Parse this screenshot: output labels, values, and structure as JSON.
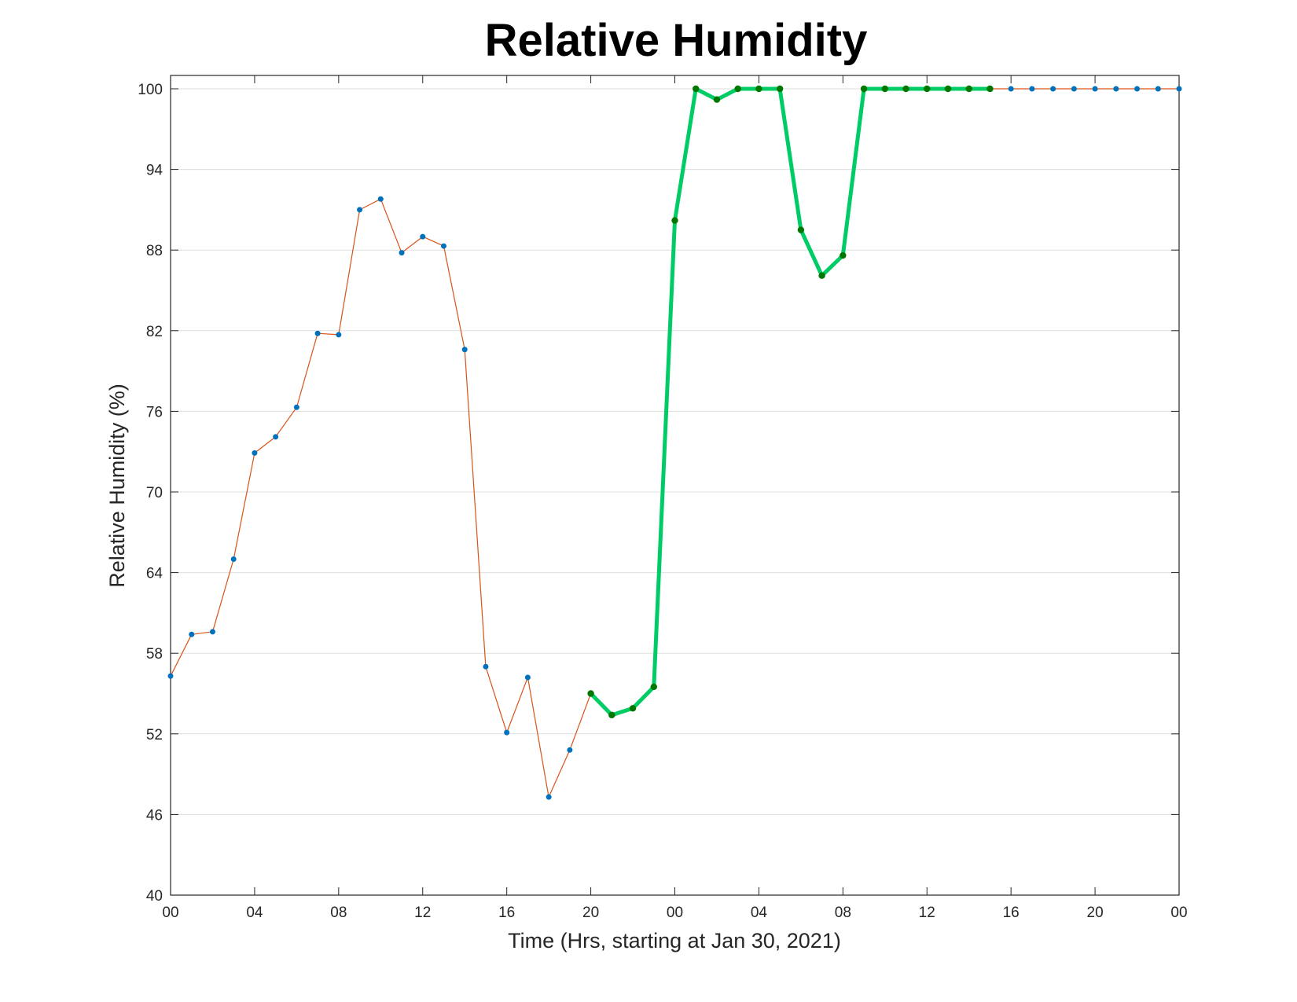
{
  "chart_data": {
    "type": "line",
    "title": "Relative Humidity",
    "xlabel": "Time (Hrs, starting at Jan 30, 2021)",
    "ylabel": "Relative Humidity (%)",
    "x_unit": "hours",
    "xlim": [
      0,
      48
    ],
    "ylim": [
      40,
      100
    ],
    "x_ticks": [
      {
        "x": 0,
        "label": "00"
      },
      {
        "x": 4,
        "label": "04"
      },
      {
        "x": 8,
        "label": "08"
      },
      {
        "x": 12,
        "label": "12"
      },
      {
        "x": 16,
        "label": "16"
      },
      {
        "x": 20,
        "label": "20"
      },
      {
        "x": 24,
        "label": "00"
      },
      {
        "x": 28,
        "label": "04"
      },
      {
        "x": 32,
        "label": "08"
      },
      {
        "x": 36,
        "label": "12"
      },
      {
        "x": 40,
        "label": "16"
      },
      {
        "x": 44,
        "label": "20"
      },
      {
        "x": 48,
        "label": "00"
      }
    ],
    "y_ticks": [
      40,
      46,
      52,
      58,
      64,
      70,
      76,
      82,
      88,
      94,
      100
    ],
    "grid": "horizontal",
    "legend": "none",
    "series": [
      {
        "color": "#D95319",
        "marker_color": "#0072BD",
        "x": [
          0,
          1,
          2,
          3,
          4,
          5,
          6,
          7,
          8,
          9,
          10,
          11,
          12,
          13,
          14,
          15,
          16,
          17,
          18,
          19,
          20,
          21,
          22,
          23,
          24,
          25,
          26,
          27,
          28,
          29,
          30,
          31,
          32,
          33,
          34,
          35,
          36,
          37,
          38,
          39,
          40,
          41,
          42,
          43,
          44,
          45,
          46,
          47,
          48
        ],
        "values": [
          56.3,
          59.4,
          59.6,
          65.0,
          72.9,
          74.1,
          76.3,
          81.8,
          81.7,
          91.0,
          91.8,
          87.8,
          89.0,
          88.3,
          80.6,
          57.0,
          52.1,
          56.2,
          47.3,
          50.8,
          55.0,
          53.4,
          53.9,
          55.5,
          90.2,
          100,
          99.2,
          100,
          100,
          100,
          89.5,
          86.1,
          87.6,
          100,
          100,
          100,
          100,
          100,
          100,
          100,
          100,
          100,
          100,
          100,
          100,
          100,
          100,
          100,
          100
        ]
      },
      {
        "color": "#00CC66",
        "marker_color": "#007700",
        "x": [
          20,
          21,
          22,
          23,
          24,
          25,
          26,
          27,
          28,
          29,
          30,
          31,
          32,
          33,
          34,
          35,
          36,
          37,
          38,
          39
        ],
        "values": [
          55.0,
          53.4,
          53.9,
          55.5,
          90.2,
          100,
          99.2,
          100,
          100,
          100,
          89.5,
          86.1,
          87.6,
          100,
          100,
          100,
          100,
          100,
          100,
          100
        ]
      }
    ]
  }
}
